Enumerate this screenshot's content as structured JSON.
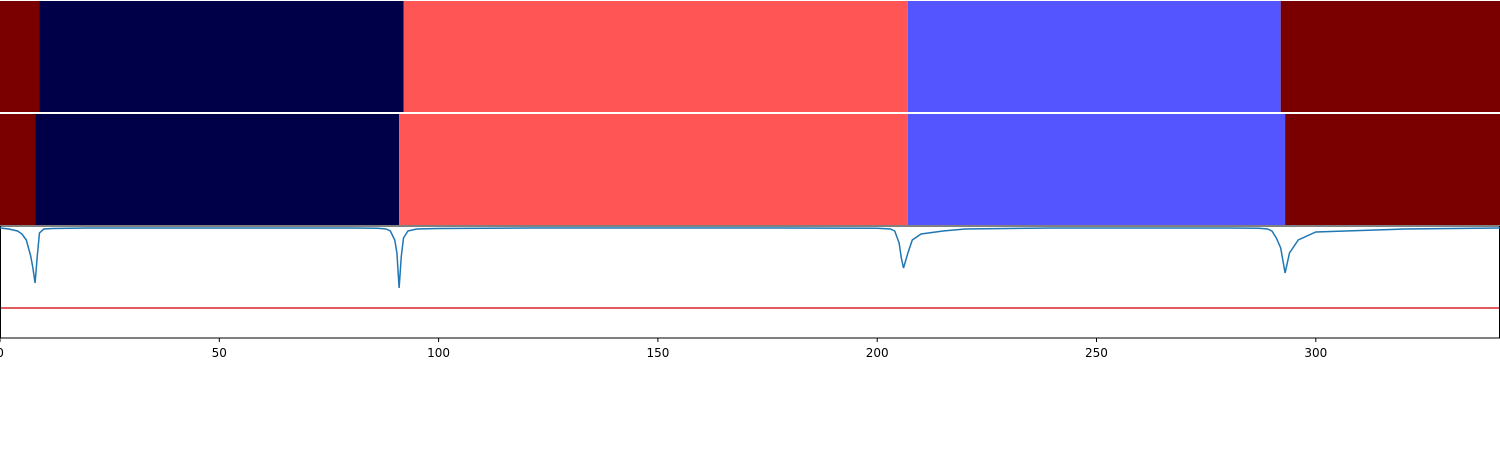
{
  "chart_data": [
    {
      "type": "heatmap",
      "panel": "segments-true",
      "segments": [
        {
          "start": 0,
          "end": 9,
          "class": 0
        },
        {
          "start": 9,
          "end": 92,
          "class": 1
        },
        {
          "start": 92,
          "end": 207,
          "class": 2
        },
        {
          "start": 207,
          "end": 292,
          "class": 3
        },
        {
          "start": 292,
          "end": 342,
          "class": 0
        }
      ]
    },
    {
      "type": "heatmap",
      "panel": "segments-predicted",
      "segments": [
        {
          "start": 0,
          "end": 8,
          "class": 0
        },
        {
          "start": 8,
          "end": 91,
          "class": 1
        },
        {
          "start": 91,
          "end": 207,
          "class": 2
        },
        {
          "start": 207,
          "end": 293,
          "class": 3
        },
        {
          "start": 293,
          "end": 342,
          "class": 0
        }
      ]
    },
    {
      "type": "line",
      "panel": "boundary-score",
      "series": [
        {
          "style": "line",
          "color": "#1f77b4",
          "x": [
            0,
            2,
            4,
            5,
            6,
            7,
            7.5,
            8,
            8.5,
            9,
            10,
            12,
            20,
            40,
            60,
            80,
            86,
            88,
            89,
            90,
            90.5,
            91,
            91.5,
            92,
            93,
            95,
            100,
            120,
            150,
            180,
            200,
            203,
            204,
            205,
            205.5,
            206,
            207,
            208,
            210,
            215,
            220,
            240,
            260,
            280,
            287,
            289,
            290,
            291,
            292,
            293,
            294,
            296,
            300,
            320,
            342
          ],
          "y": [
            1.0,
            0.99,
            0.97,
            0.94,
            0.88,
            0.72,
            0.6,
            0.45,
            0.72,
            0.95,
            0.99,
            0.995,
            1.0,
            1.0,
            1.0,
            1.0,
            0.998,
            0.99,
            0.97,
            0.88,
            0.75,
            0.4,
            0.72,
            0.9,
            0.97,
            0.99,
            0.995,
            1.0,
            1.0,
            1.0,
            0.998,
            0.99,
            0.97,
            0.85,
            0.7,
            0.6,
            0.75,
            0.88,
            0.94,
            0.97,
            0.99,
            1.0,
            1.0,
            1.0,
            0.998,
            0.99,
            0.97,
            0.9,
            0.8,
            0.55,
            0.75,
            0.88,
            0.96,
            0.99,
            1.0
          ]
        },
        {
          "style": "hline",
          "color": "#d62728",
          "y": 0.2
        }
      ],
      "xlim": [
        0,
        342
      ],
      "ylim": [
        -0.1,
        1.02
      ],
      "xticks": [
        0,
        50,
        100,
        150,
        200,
        250,
        300
      ]
    }
  ],
  "palette": {
    "class_colors": [
      "#7a0000",
      "#000048",
      "#ff5555",
      "#5555ff"
    ],
    "separator": "#ffffff",
    "axis": "#000000"
  }
}
